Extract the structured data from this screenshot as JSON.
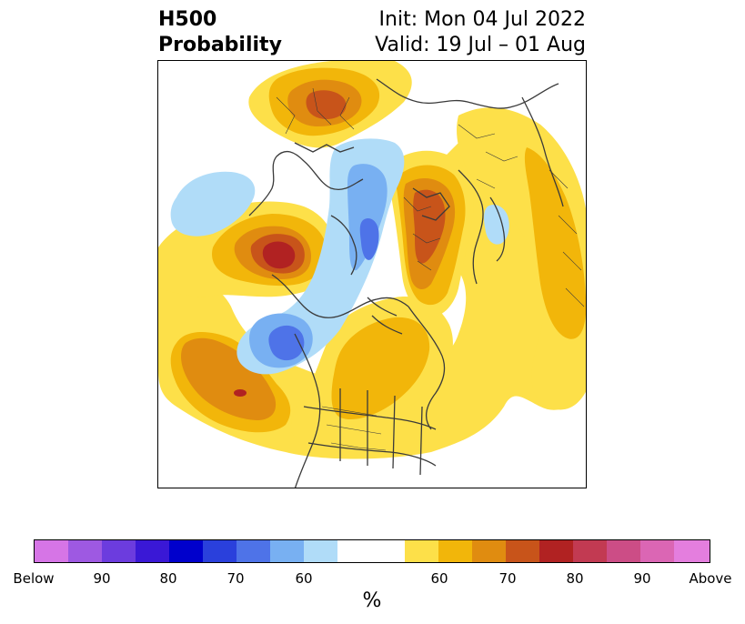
{
  "header": {
    "title_line1": "H500",
    "title_line2": "Probability",
    "init_text": "Init: Mon 04 Jul 2022",
    "valid_text": "Valid: 19 Jul – 01 Aug"
  },
  "colorbar": {
    "colors": [
      "#d675e6",
      "#9e59e2",
      "#6c3cde",
      "#3a18d6",
      "#0000cc",
      "#2a40dc",
      "#4e73e8",
      "#78b0f2",
      "#b0dcf8",
      "#ffffff",
      "#ffffff",
      "#fde049",
      "#f2b60a",
      "#e08c10",
      "#c8541a",
      "#b12222",
      "#c23a52",
      "#cc4d86",
      "#db66b4",
      "#e47ede"
    ],
    "tick_labels": [
      "Below",
      "90",
      "80",
      "70",
      "60",
      "60",
      "70",
      "80",
      "90",
      "Above"
    ],
    "unit_label": "%"
  },
  "map": {
    "colors": {
      "above_60": "#fde049",
      "above_65": "#f2b60a",
      "above_70": "#e08c10",
      "above_75": "#c8541a",
      "above_80": "#b12222",
      "below_60": "#b0dcf8",
      "below_65": "#78b0f2",
      "below_70": "#4e73e8",
      "coastline": "#3a3a3a"
    }
  }
}
